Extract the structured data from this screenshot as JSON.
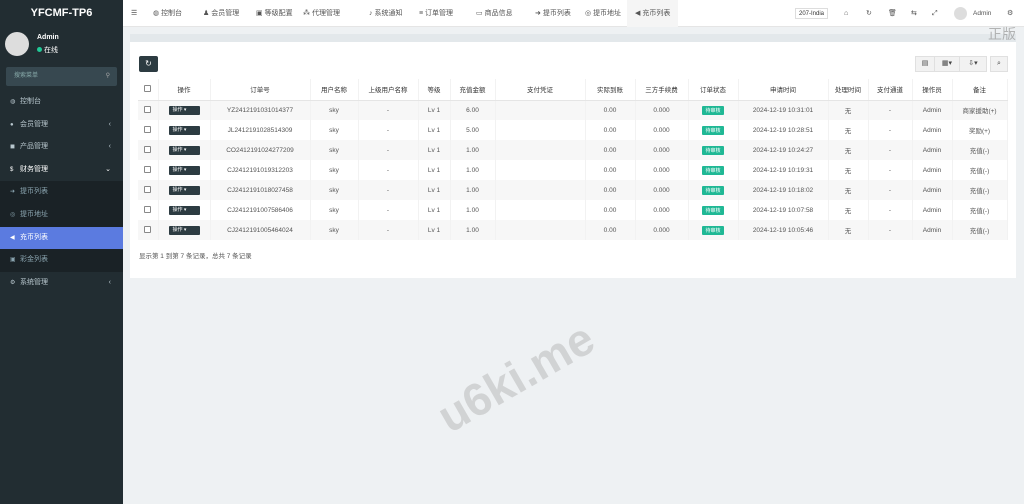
{
  "app": {
    "title": "YFCMF-TP6"
  },
  "user": {
    "name": "Admin",
    "status": "在线",
    "status_color": "#20c997"
  },
  "sidebar": {
    "search_placeholder": "搜索菜单",
    "items": [
      {
        "label": "控制台",
        "icon": "dashboard-icon"
      },
      {
        "label": "会员管理",
        "icon": "users-icon",
        "arrow": "‹"
      },
      {
        "label": "产品管理",
        "icon": "product-icon",
        "arrow": "‹"
      },
      {
        "label": "财务管理",
        "icon": "money-icon",
        "arrow": "⌄",
        "open": true
      },
      {
        "label": "提币列表",
        "icon": "withdraw-icon",
        "sub": true
      },
      {
        "label": "提币地址",
        "icon": "address-icon",
        "sub": true
      },
      {
        "label": "充币列表",
        "icon": "deposit-icon",
        "sub": true,
        "active": true
      },
      {
        "label": "彩金列表",
        "icon": "bonus-icon",
        "sub": true
      },
      {
        "label": "系统管理",
        "icon": "gears-icon",
        "arrow": "‹"
      }
    ]
  },
  "topnav": {
    "tabs": [
      {
        "label": "控制台",
        "icon": "dashboard-icon"
      },
      {
        "label": "会员管理",
        "icon": "user-icon"
      },
      {
        "label": "等级配置",
        "icon": "level-icon"
      },
      {
        "label": "代理管理",
        "icon": "sitemap-icon"
      },
      {
        "label": "系统通知",
        "icon": "bell-icon"
      },
      {
        "label": "订单管理",
        "icon": "list-icon"
      },
      {
        "label": "商品信息",
        "icon": "monitor-icon"
      },
      {
        "label": "提币列表",
        "icon": "withdraw-icon"
      },
      {
        "label": "提币地址",
        "icon": "address-icon"
      },
      {
        "label": "充币列表",
        "icon": "deposit-icon",
        "active": true
      }
    ],
    "language": "207-India",
    "admin": "Admin"
  },
  "watermarks": [
    "正版",
    "u6ki.me"
  ],
  "table": {
    "columns": [
      "操作",
      "订单号",
      "用户名称",
      "上级用户名称",
      "等级",
      "充值金额",
      "支付凭证",
      "实际到账",
      "三方手续费",
      "订单状态",
      "申请时间",
      "处理时间",
      "支付通道",
      "操作员",
      "备注"
    ],
    "action_label": "操作",
    "rows": [
      [
        "YZ2412191031014377",
        "sky",
        "-",
        "Lv 1",
        "6.00",
        "",
        "0.00",
        "0.000",
        "待审核",
        "2024-12-19 10:31:01",
        "无",
        "-",
        "Admin",
        "商家援助(+)"
      ],
      [
        "JL2412191028514309",
        "sky",
        "-",
        "Lv 1",
        "5.00",
        "",
        "0.00",
        "0.000",
        "待审核",
        "2024-12-19 10:28:51",
        "无",
        "-",
        "Admin",
        "奖励(+)"
      ],
      [
        "CO2412191024277209",
        "sky",
        "-",
        "Lv 1",
        "1.00",
        "",
        "0.00",
        "0.000",
        "待审核",
        "2024-12-19 10:24:27",
        "无",
        "-",
        "Admin",
        "充值(-)"
      ],
      [
        "CJ2412191019312203",
        "sky",
        "-",
        "Lv 1",
        "1.00",
        "",
        "0.00",
        "0.000",
        "待审核",
        "2024-12-19 10:19:31",
        "无",
        "-",
        "Admin",
        "充值(-)"
      ],
      [
        "CJ2412191018027458",
        "sky",
        "-",
        "Lv 1",
        "1.00",
        "",
        "0.00",
        "0.000",
        "待审核",
        "2024-12-19 10:18:02",
        "无",
        "-",
        "Admin",
        "充值(-)"
      ],
      [
        "CJ2412191007586406",
        "sky",
        "-",
        "Lv 1",
        "1.00",
        "",
        "0.00",
        "0.000",
        "待审核",
        "2024-12-19 10:07:58",
        "无",
        "-",
        "Admin",
        "充值(-)"
      ],
      [
        "CJ2412191005464024",
        "sky",
        "-",
        "Lv 1",
        "1.00",
        "",
        "0.00",
        "0.000",
        "待审核",
        "2024-12-19 10:05:46",
        "无",
        "-",
        "Admin",
        "充值(-)"
      ]
    ],
    "footer": "显示第 1 到第 7 条记录，总共 7 条记录"
  }
}
